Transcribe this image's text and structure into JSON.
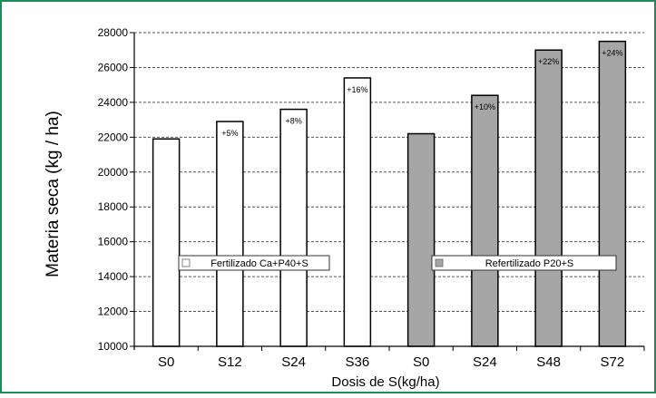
{
  "chart_data": {
    "type": "bar",
    "xlabel": "Dosis de S(kg/ha)",
    "ylabel": "Materia seca (kg / ha)",
    "ylim": [
      10000,
      28000
    ],
    "yticks": [
      "10000",
      "12000",
      "14000",
      "16000",
      "18000",
      "20000",
      "22000",
      "24000",
      "26000",
      "28000"
    ],
    "grid": true,
    "categories": [
      "S0",
      "S12",
      "S24",
      "S36",
      "S0",
      "S24",
      "S48",
      "S72"
    ],
    "values": [
      21900,
      22900,
      23600,
      25400,
      22200,
      24400,
      27000,
      27500
    ],
    "bar_labels": [
      "",
      "+5%",
      "+8%",
      "+16%",
      "",
      "+10%",
      "+22%",
      "+24%"
    ],
    "bar_groups": [
      0,
      0,
      0,
      0,
      1,
      1,
      1,
      1
    ],
    "series": [
      {
        "name": "Fertilizado Ca+P40+S",
        "color": "#ffffff"
      },
      {
        "name": "Refertilizado P20+S",
        "color": "#a6a6a6"
      }
    ]
  },
  "colors": {
    "frame_border": "#1f8a5c",
    "bar_stroke": "#000000",
    "grid": "#555555"
  }
}
